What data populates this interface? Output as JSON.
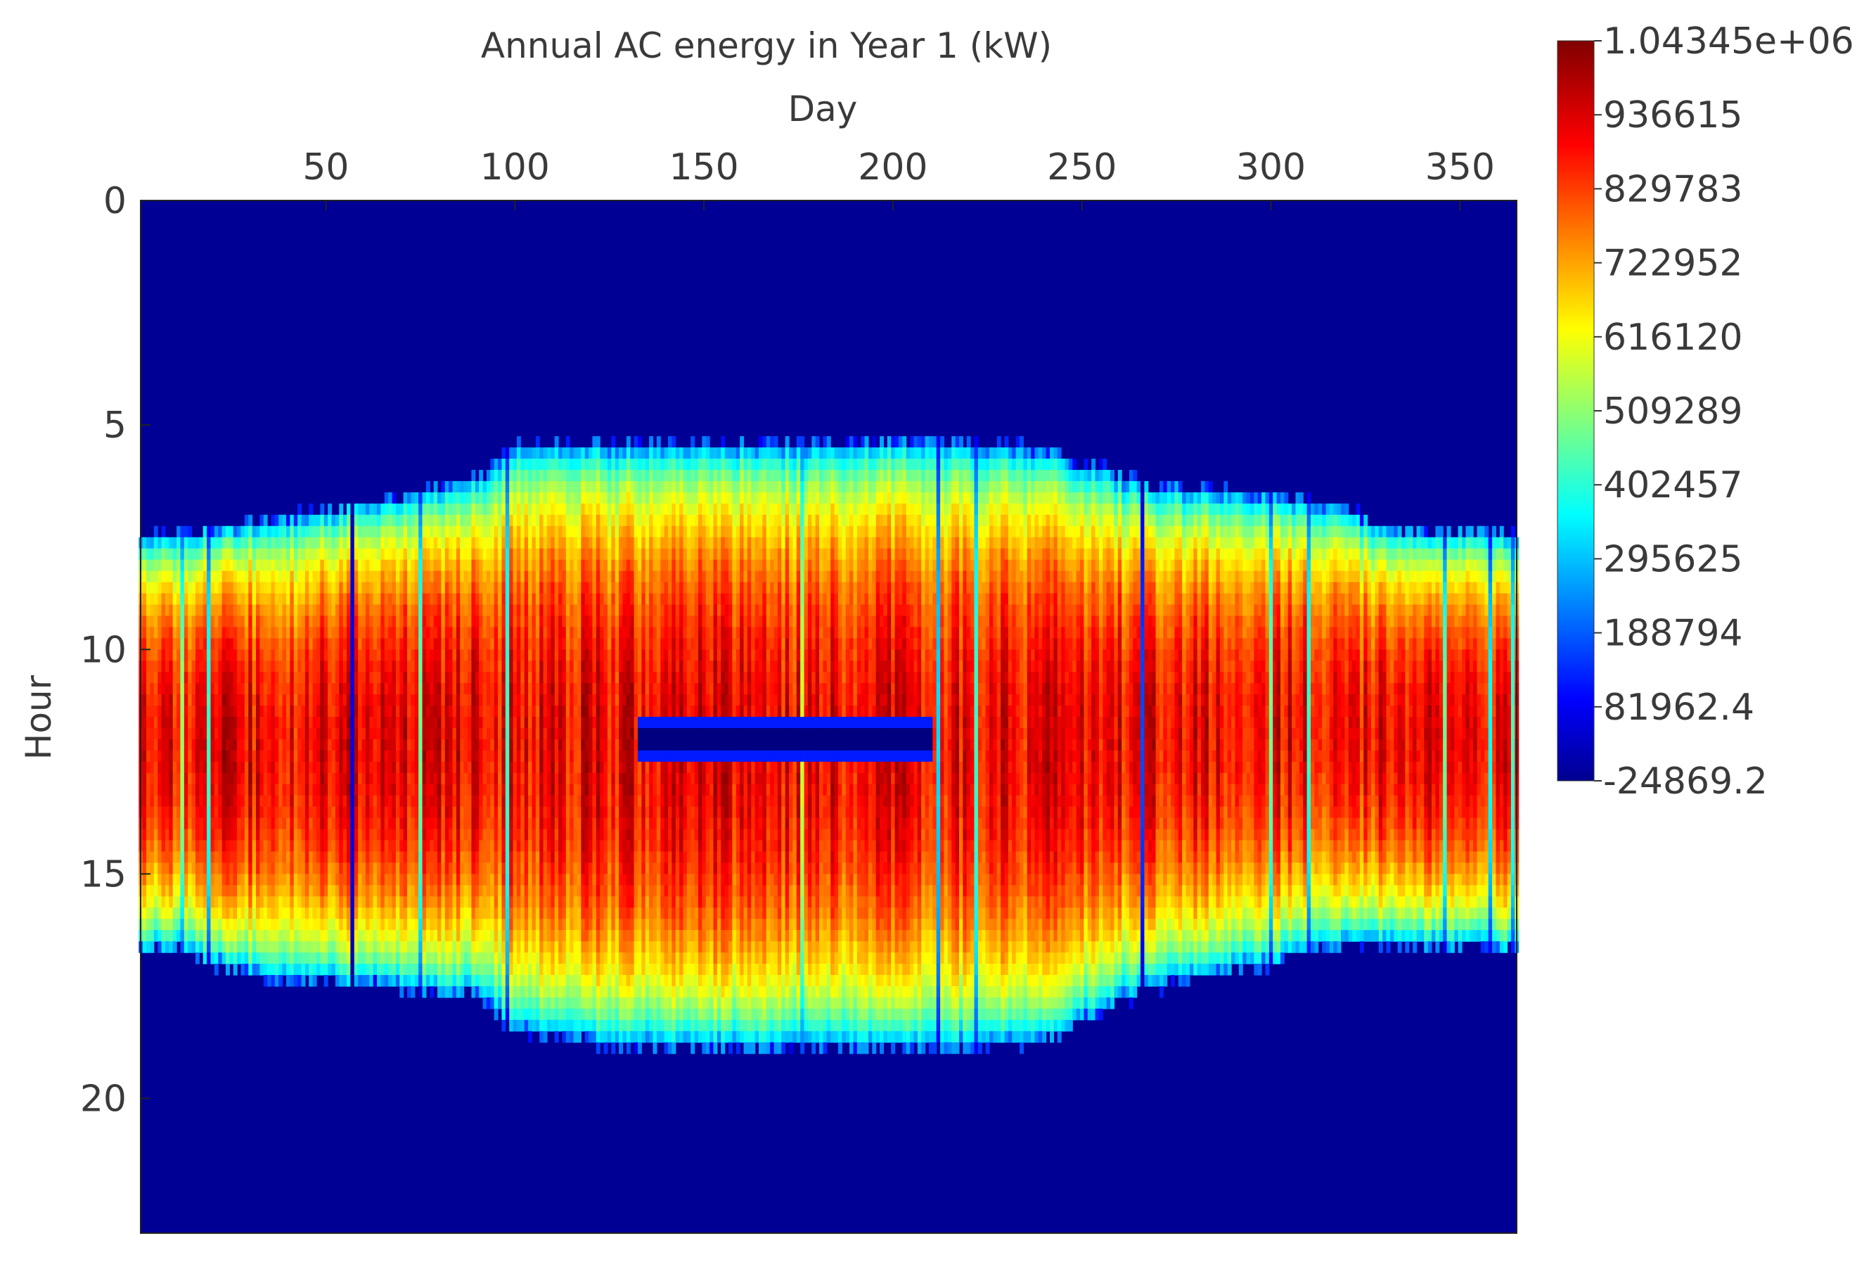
{
  "chart_data": {
    "type": "heatmap",
    "title": "Annual AC energy in Year 1 (kW)",
    "xlabel": "Day",
    "ylabel": "Hour",
    "x_axis_position": "top",
    "x_range": [
      1,
      365
    ],
    "y_range": [
      0,
      23
    ],
    "y_direction": "down",
    "x_ticks": [
      50,
      100,
      150,
      200,
      250,
      300,
      350
    ],
    "x_tick_labels": [
      "50",
      "100",
      "150",
      "200",
      "250",
      "300",
      "350"
    ],
    "y_ticks": [
      0,
      5,
      10,
      15,
      20
    ],
    "y_tick_labels": [
      "0",
      "5",
      "10",
      "15",
      "20"
    ],
    "colormap": "jet",
    "colorbar": {
      "placement": "right",
      "min": -24869.2,
      "max": 1043450,
      "tick_values": [
        1043450,
        936615,
        829783,
        722952,
        616120,
        509289,
        402457,
        295625,
        188794,
        81962.4,
        -24869.2
      ],
      "tick_labels": [
        "1.04345e+06",
        "936615",
        "829783",
        "722952",
        "616120",
        "509289",
        "402457",
        "295625",
        "188794",
        "81962.4",
        "-24869.2"
      ]
    },
    "daylight_profile": {
      "description_days": [
        1,
        10,
        30,
        60,
        90,
        100,
        130,
        170,
        210,
        240,
        266,
        300,
        320,
        330,
        365
      ],
      "sunrise_hour": [
        7.5,
        7.4,
        7.2,
        6.7,
        6.2,
        5.4,
        5.4,
        5.4,
        5.3,
        5.5,
        6.3,
        6.5,
        6.8,
        7.3,
        7.4
      ],
      "sunset_hour": [
        16.7,
        16.7,
        17.3,
        17.5,
        17.7,
        18.5,
        18.9,
        18.9,
        18.9,
        18.8,
        17.6,
        17.0,
        16.6,
        16.6,
        16.7
      ]
    },
    "peak_value": 1043450,
    "outage": {
      "day_start": 133,
      "day_end": 210,
      "hour_start": 11.4,
      "hour_end": 12.6,
      "value": -24869.2
    },
    "cloudy_days": [
      {
        "day": 12,
        "factor": 0.55
      },
      {
        "day": 19,
        "factor": 0.45
      },
      {
        "day": 57,
        "factor": 0.1
      },
      {
        "day": 75,
        "factor": 0.5
      },
      {
        "day": 98,
        "factor": 0.45
      },
      {
        "day": 176,
        "factor": 0.6
      },
      {
        "day": 212,
        "factor": 0.35
      },
      {
        "day": 222,
        "factor": 0.45
      },
      {
        "day": 266,
        "factor": 0.2
      },
      {
        "day": 300,
        "factor": 0.5
      },
      {
        "day": 310,
        "factor": 0.45
      },
      {
        "day": 346,
        "factor": 0.5
      },
      {
        "day": 358,
        "factor": 0.4
      },
      {
        "day": 364,
        "factor": 0.45
      }
    ]
  }
}
